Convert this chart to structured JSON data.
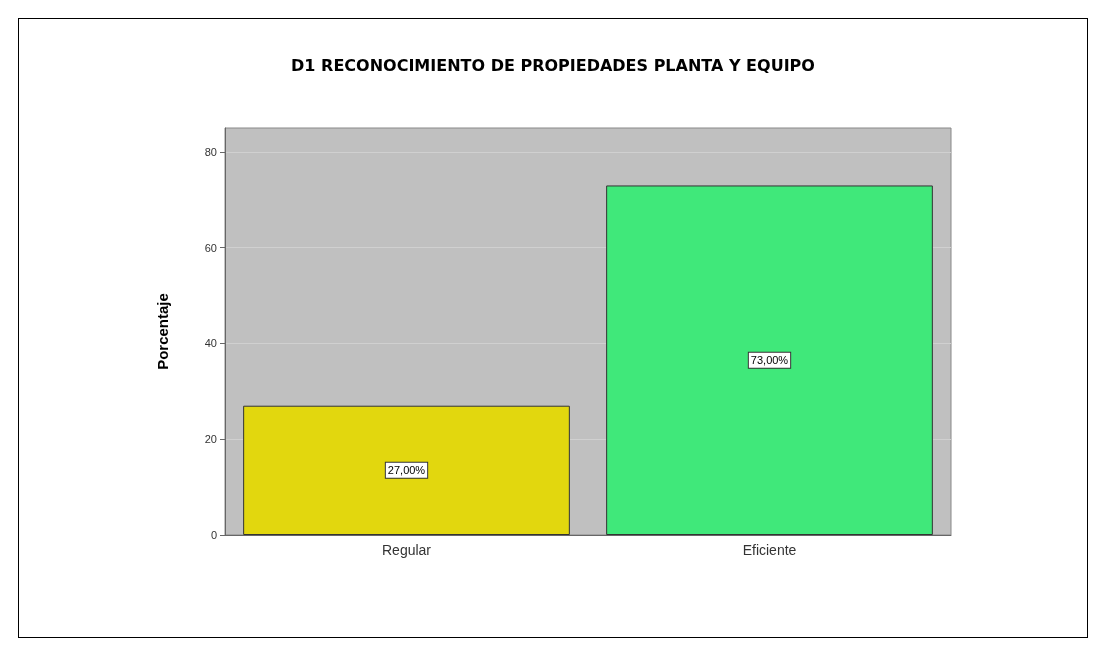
{
  "chart_data": {
    "type": "bar",
    "title": "D1 RECONOCIMIENTO DE PROPIEDADES PLANTA Y EQUIPO",
    "ylabel": "Porcentaje",
    "categories": [
      "Regular",
      "Eficiente"
    ],
    "values": [
      27,
      73
    ],
    "colors": [
      "#e2d70e",
      "#40e87a"
    ],
    "value_labels": [
      "27,00%",
      "73,00%"
    ],
    "ylim": [
      0,
      85
    ],
    "yticks": [
      0,
      20,
      40,
      60,
      80
    ],
    "grid": "y"
  }
}
